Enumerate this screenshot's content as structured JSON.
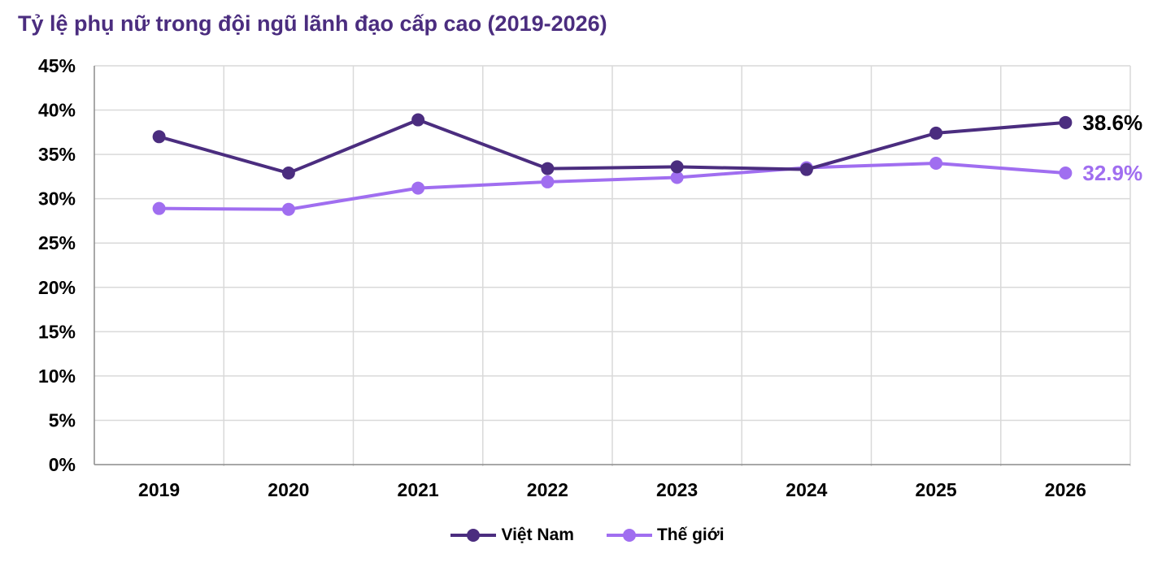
{
  "chart_data": {
    "type": "line",
    "title": "Tỷ lệ phụ nữ trong đội ngũ lãnh đạo cấp cao (2019-2026)",
    "categories": [
      "2019",
      "2020",
      "2021",
      "2022",
      "2023",
      "2024",
      "2025",
      "2026"
    ],
    "series": [
      {
        "name": "Việt Nam",
        "color": "#4b2d7f",
        "values": [
          37.0,
          32.9,
          38.9,
          33.4,
          33.6,
          33.3,
          37.4,
          38.6
        ],
        "end_label": "38.6%"
      },
      {
        "name": "Thế giới",
        "color": "#a06ef0",
        "values": [
          28.9,
          28.8,
          31.2,
          31.9,
          32.4,
          33.5,
          34.0,
          32.9
        ],
        "end_label": "32.9%"
      }
    ],
    "y_ticks": [
      "0%",
      "5%",
      "10%",
      "15%",
      "20%",
      "25%",
      "30%",
      "35%",
      "40%",
      "45%"
    ],
    "ylim": [
      0,
      45
    ],
    "y_unit": "%",
    "grid": true,
    "legend_position": "bottom-center"
  }
}
